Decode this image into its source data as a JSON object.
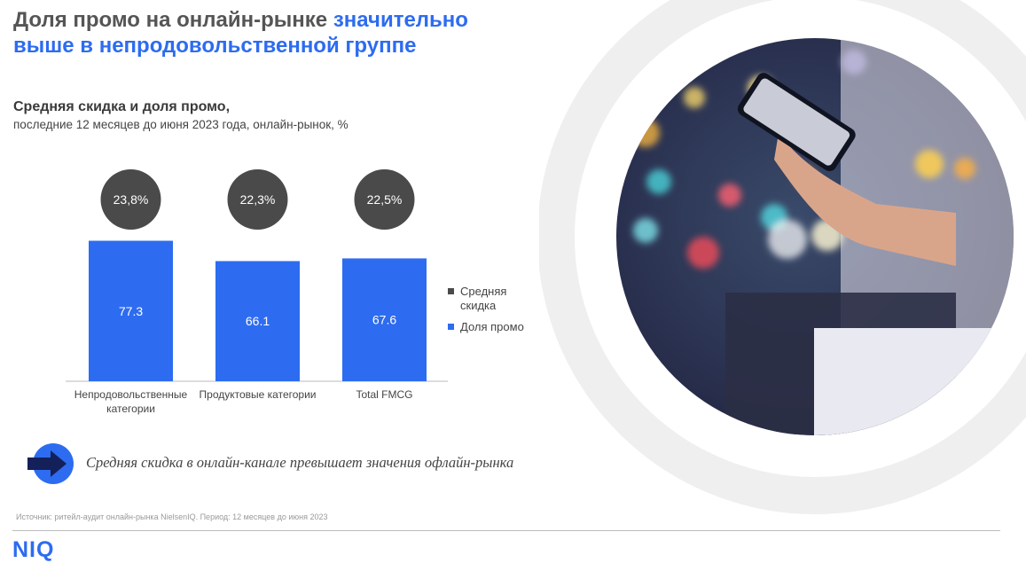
{
  "header": {
    "title_part1": "Доля промо на онлайн-рынке ",
    "title_highlight_line1": "значительно",
    "title_highlight_line2": "выше в непродовольственной группе"
  },
  "chart_header": {
    "title": "Средняя скидка и доля промо,",
    "subtitle": "последние 12 месяцев до июня 2023 года, онлайн-рынок, %"
  },
  "chart_data": {
    "type": "bar",
    "categories": [
      "Непродовольственные категории",
      "Продуктовые категории",
      "Total FMCG"
    ],
    "series": [
      {
        "name": "Средняя скидка",
        "values": [
          23.8,
          22.3,
          22.5
        ],
        "labels": [
          "23,8%",
          "22,3%",
          "22,5%"
        ],
        "color": "#4a4a4a"
      },
      {
        "name": "Доля промо",
        "values": [
          77.3,
          66.1,
          67.6
        ],
        "labels": [
          "77.3",
          "66.1",
          "67.6"
        ],
        "color": "#2d6cf0"
      }
    ],
    "ylim": [
      0,
      80
    ],
    "grid": false,
    "legend_position": "right"
  },
  "legend": {
    "discount_line1": "Средняя",
    "discount_line2": "скидка",
    "promo": "Доля промо"
  },
  "note": "Средняя скидка в онлайн-канале превышает значения офлайн-рынка",
  "source": "Источник: ритейл-аудит онлайн-рынка NielsenIQ. Период: 12 месяцев до июня 2023",
  "logo": "NIQ",
  "colors": {
    "accent": "#2d6cf0",
    "dark": "#4a4a4a",
    "ring": "#efefef"
  },
  "image": {
    "description": "hand-holding-smartphone-photo"
  }
}
